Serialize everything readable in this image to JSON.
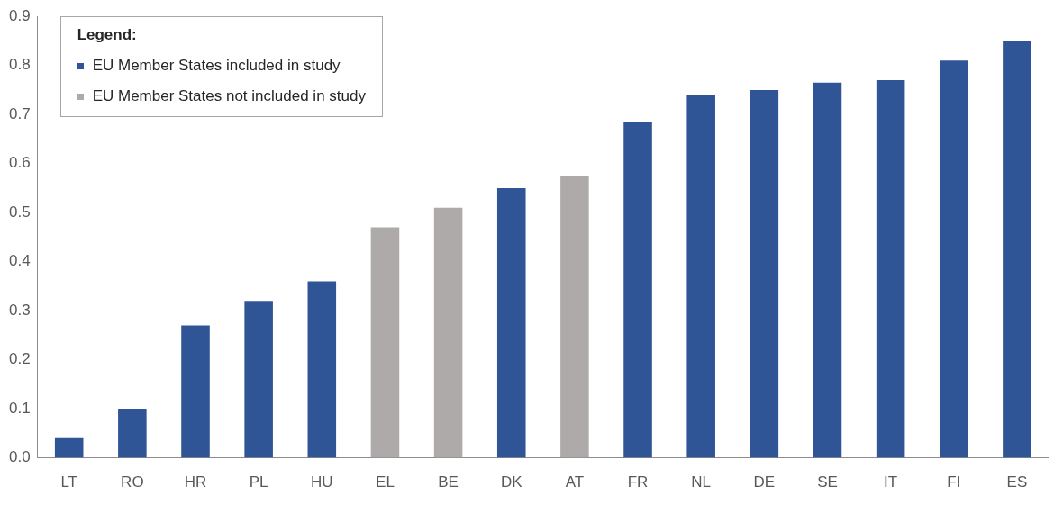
{
  "chart_data": {
    "type": "bar",
    "categories": [
      "LT",
      "RO",
      "HR",
      "PL",
      "HU",
      "EL",
      "BE",
      "DK",
      "AT",
      "FR",
      "NL",
      "DE",
      "SE",
      "IT",
      "FI",
      "ES"
    ],
    "series": [
      {
        "name": "EU Member States included in study",
        "color": "#2f5597",
        "values": [
          0.04,
          0.1,
          0.27,
          0.32,
          0.36,
          null,
          null,
          0.55,
          null,
          0.685,
          0.74,
          0.75,
          0.765,
          0.77,
          0.81,
          0.85
        ]
      },
      {
        "name": "EU Member States not included in study",
        "color": "#aeaaaa",
        "values": [
          null,
          null,
          null,
          null,
          null,
          0.47,
          0.51,
          null,
          0.575,
          null,
          null,
          null,
          null,
          null,
          null,
          null
        ]
      }
    ],
    "legend_title": "Legend:",
    "legend": "top left",
    "grid": false,
    "ylim": [
      0,
      0.9
    ],
    "yticks": [
      {
        "value": 0,
        "label": "0.0"
      },
      0.1,
      0.2,
      0.3,
      0.4,
      0.5,
      0.6,
      0.7,
      0.8,
      0.9
    ]
  }
}
